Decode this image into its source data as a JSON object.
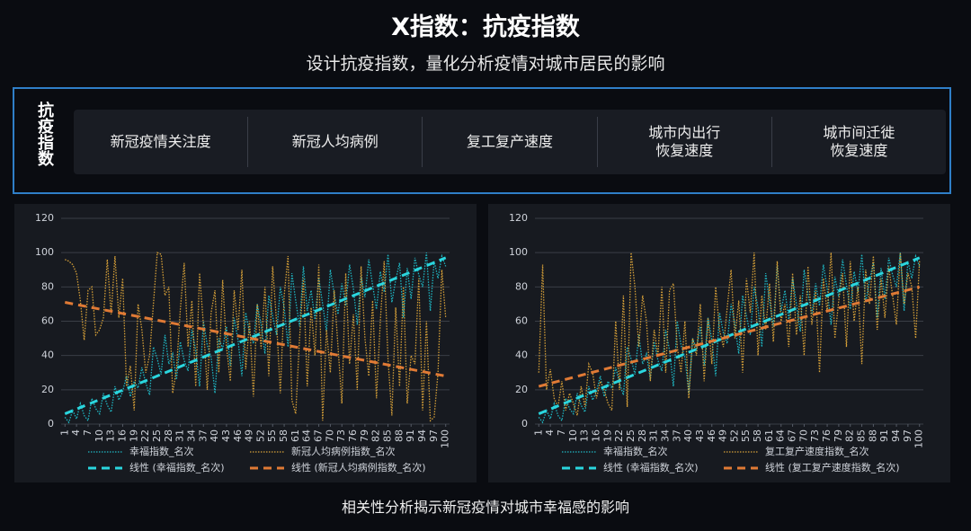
{
  "header": {
    "title": "X指数：抗疫指数",
    "subtitle": "设计抗疫指数，量化分析疫情对城市居民的影响"
  },
  "index_panel": {
    "label": "抗疫指数",
    "items": [
      [
        "新冠疫情关注度"
      ],
      [
        "新冠人均病例"
      ],
      [
        "复工复产速度"
      ],
      [
        "城市内出行",
        "恢复速度"
      ],
      [
        "城市间迁徙",
        "恢复速度"
      ]
    ]
  },
  "chart_data": [
    {
      "type": "line",
      "x": [
        1,
        2,
        3,
        4,
        5,
        6,
        7,
        8,
        9,
        10,
        11,
        12,
        13,
        14,
        15,
        16,
        17,
        18,
        19,
        20,
        21,
        22,
        23,
        24,
        25,
        26,
        27,
        28,
        29,
        30,
        31,
        32,
        33,
        34,
        35,
        36,
        37,
        38,
        39,
        40,
        41,
        42,
        43,
        44,
        45,
        46,
        47,
        48,
        49,
        50,
        51,
        52,
        53,
        54,
        55,
        56,
        57,
        58,
        59,
        60,
        61,
        62,
        63,
        64,
        65,
        66,
        67,
        68,
        69,
        70,
        71,
        72,
        73,
        74,
        75,
        76,
        77,
        78,
        79,
        80,
        81,
        82,
        83,
        84,
        85,
        86,
        87,
        88,
        89,
        90,
        91,
        92,
        93,
        94,
        95,
        96,
        97,
        98,
        99,
        100
      ],
      "xlim": [
        0,
        101
      ],
      "xticks": [
        1,
        4,
        7,
        10,
        13,
        16,
        19,
        22,
        25,
        28,
        31,
        34,
        37,
        40,
        43,
        46,
        49,
        52,
        55,
        58,
        61,
        64,
        67,
        70,
        73,
        76,
        79,
        82,
        85,
        88,
        91,
        94,
        97,
        100
      ],
      "ylim": [
        0,
        120
      ],
      "yticks": [
        0,
        20,
        40,
        60,
        80,
        100,
        120
      ],
      "grid": true,
      "series": [
        {
          "name": "幸福指数_名次",
          "color": "#1fb8c4",
          "style": "dotted",
          "values": [
            4,
            1,
            8,
            3,
            12,
            5,
            2,
            15,
            9,
            6,
            18,
            11,
            7,
            22,
            14,
            19,
            28,
            16,
            25,
            21,
            33,
            24,
            17,
            45,
            38,
            29,
            52,
            35,
            41,
            26,
            48,
            37,
            31,
            55,
            43,
            22,
            60,
            46,
            39,
            18,
            50,
            44,
            57,
            34,
            62,
            49,
            28,
            65,
            53,
            47,
            70,
            58,
            41,
            75,
            63,
            52,
            80,
            68,
            45,
            88,
            72,
            57,
            92,
            66,
            78,
            61,
            85,
            70,
            54,
            90,
            76,
            64,
            82,
            69,
            93,
            79,
            58,
            86,
            74,
            96,
            81,
            67,
            89,
            77,
            99,
            71,
            84,
            94,
            62,
            91,
            73,
            97,
            87,
            80,
            100,
            66,
            95,
            85,
            98,
            92
          ]
        },
        {
          "name": "新冠人均病例指数_名次",
          "color": "#d6a038",
          "style": "dotted",
          "values": [
            96,
            95,
            93,
            88,
            72,
            49,
            78,
            80,
            52,
            55,
            62,
            96,
            64,
            98,
            62,
            85,
            22,
            34,
            8,
            70,
            55,
            30,
            40,
            70,
            100,
            99,
            75,
            80,
            18,
            32,
            67,
            94,
            45,
            72,
            22,
            88,
            58,
            20,
            65,
            78,
            30,
            84,
            45,
            25,
            78,
            55,
            90,
            32,
            60,
            16,
            70,
            44,
            80,
            28,
            92,
            60,
            18,
            75,
            98,
            14,
            6,
            50,
            85,
            22,
            68,
            40,
            93,
            2,
            55,
            30,
            78,
            45,
            12,
            88,
            35,
            64,
            20,
            92,
            50,
            28,
            72,
            15,
            60,
            95,
            38,
            5,
            68,
            22,
            80,
            12,
            40,
            35,
            85,
            8,
            60,
            2,
            4,
            30,
            90,
            62
          ]
        },
        {
          "name": "线性 (幸福指数_名次)",
          "color": "#2ad6de",
          "style": "dashed",
          "x": [
            1,
            100
          ],
          "values": [
            6,
            97
          ]
        },
        {
          "name": "线性 (新冠人均病例指数_名次)",
          "color": "#e07a35",
          "style": "dashed",
          "x": [
            1,
            100
          ],
          "values": [
            71,
            28
          ]
        }
      ]
    },
    {
      "type": "line",
      "x": [
        1,
        2,
        3,
        4,
        5,
        6,
        7,
        8,
        9,
        10,
        11,
        12,
        13,
        14,
        15,
        16,
        17,
        18,
        19,
        20,
        21,
        22,
        23,
        24,
        25,
        26,
        27,
        28,
        29,
        30,
        31,
        32,
        33,
        34,
        35,
        36,
        37,
        38,
        39,
        40,
        41,
        42,
        43,
        44,
        45,
        46,
        47,
        48,
        49,
        50,
        51,
        52,
        53,
        54,
        55,
        56,
        57,
        58,
        59,
        60,
        61,
        62,
        63,
        64,
        65,
        66,
        67,
        68,
        69,
        70,
        71,
        72,
        73,
        74,
        75,
        76,
        77,
        78,
        79,
        80,
        81,
        82,
        83,
        84,
        85,
        86,
        87,
        88,
        89,
        90,
        91,
        92,
        93,
        94,
        95,
        96,
        97,
        98,
        99,
        100
      ],
      "xlim": [
        0,
        101
      ],
      "xticks": [
        1,
        4,
        7,
        10,
        13,
        16,
        19,
        22,
        25,
        28,
        31,
        34,
        37,
        40,
        43,
        46,
        49,
        52,
        55,
        58,
        61,
        64,
        67,
        70,
        73,
        76,
        79,
        82,
        85,
        88,
        91,
        94,
        97,
        100
      ],
      "ylim": [
        0,
        120
      ],
      "yticks": [
        0,
        20,
        40,
        60,
        80,
        100,
        120
      ],
      "grid": true,
      "series": [
        {
          "name": "幸福指数_名次",
          "color": "#1fb8c4",
          "style": "dotted",
          "values": [
            4,
            1,
            8,
            3,
            12,
            5,
            2,
            15,
            9,
            6,
            18,
            11,
            7,
            22,
            14,
            19,
            28,
            16,
            25,
            21,
            33,
            24,
            17,
            45,
            38,
            29,
            52,
            35,
            41,
            26,
            48,
            37,
            31,
            55,
            43,
            22,
            60,
            46,
            39,
            18,
            50,
            44,
            57,
            34,
            62,
            49,
            28,
            65,
            53,
            47,
            70,
            58,
            41,
            75,
            63,
            52,
            80,
            68,
            45,
            88,
            72,
            57,
            92,
            66,
            78,
            61,
            85,
            70,
            54,
            90,
            76,
            64,
            82,
            69,
            93,
            79,
            58,
            86,
            74,
            96,
            81,
            67,
            89,
            77,
            99,
            71,
            84,
            94,
            62,
            91,
            73,
            97,
            87,
            80,
            100,
            66,
            95,
            85,
            98,
            92
          ]
        },
        {
          "name": "复工复产速度指数_名次",
          "color": "#d6a038",
          "style": "dotted",
          "values": [
            30,
            93,
            20,
            32,
            15,
            10,
            25,
            8,
            18,
            12,
            5,
            22,
            10,
            35,
            30,
            15,
            25,
            20,
            12,
            8,
            60,
            20,
            75,
            10,
            100,
            80,
            45,
            75,
            60,
            25,
            55,
            40,
            80,
            30,
            78,
            82,
            45,
            30,
            60,
            15,
            50,
            40,
            70,
            25,
            62,
            35,
            80,
            55,
            45,
            68,
            90,
            50,
            72,
            30,
            85,
            65,
            100,
            40,
            75,
            55,
            82,
            48,
            95,
            60,
            70,
            45,
            88,
            52,
            75,
            40,
            92,
            58,
            78,
            30,
            85,
            65,
            100,
            50,
            72,
            88,
            45,
            95,
            60,
            80,
            35,
            90,
            70,
            98,
            55,
            85,
            62,
            92,
            75,
            58,
            100,
            70,
            88,
            80,
            50,
            95
          ]
        },
        {
          "name": "线性 (幸福指数_名次)",
          "color": "#2ad6de",
          "style": "dashed",
          "x": [
            1,
            100
          ],
          "values": [
            6,
            97
          ]
        },
        {
          "name": "线性 (复工复产速度指数_名次)",
          "color": "#e07a35",
          "style": "dashed",
          "x": [
            1,
            100
          ],
          "values": [
            22,
            80
          ]
        }
      ]
    }
  ],
  "caption": "相关性分析揭示新冠疫情对城市幸福感的影响"
}
